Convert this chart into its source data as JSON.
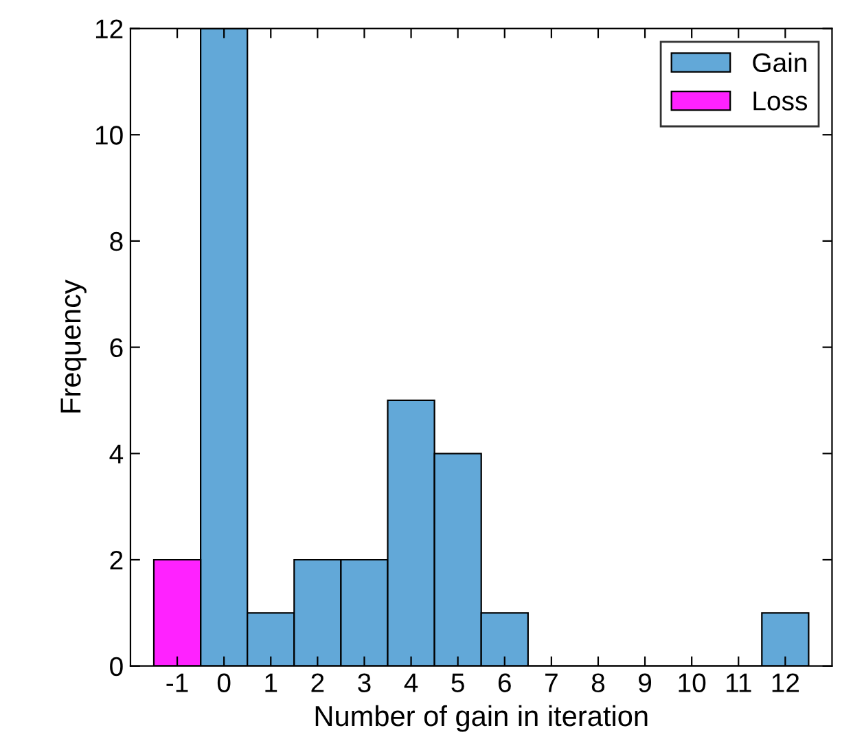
{
  "chart_data": {
    "type": "histogram",
    "xlabel": "Number of gain in iteration",
    "ylabel": "Frequency",
    "bins": [
      -1.5,
      -0.5,
      0.5,
      1.5,
      2.5,
      3.5,
      4.5,
      5.5,
      6.5,
      7.5,
      8.5,
      9.5,
      10.5,
      11.5,
      12.5
    ],
    "series": [
      {
        "name": "Gain",
        "color": "#62a8d8",
        "values": [
          null,
          12,
          1,
          2,
          2,
          5,
          4,
          1,
          0,
          0,
          0,
          0,
          0,
          1
        ]
      },
      {
        "name": "Loss",
        "color": "#ff22ff",
        "values": [
          2,
          null,
          null,
          null,
          null,
          null,
          null,
          null,
          null,
          null,
          null,
          null,
          null,
          null
        ]
      }
    ],
    "xlim": [
      -2,
      13
    ],
    "xticks": [
      -1,
      0,
      1,
      2,
      3,
      4,
      5,
      6,
      7,
      8,
      9,
      10,
      11,
      12
    ],
    "ylim": [
      0,
      12
    ],
    "yticks": [
      0,
      2,
      4,
      6,
      8,
      10,
      12
    ],
    "legend": "top right",
    "grid": false
  }
}
